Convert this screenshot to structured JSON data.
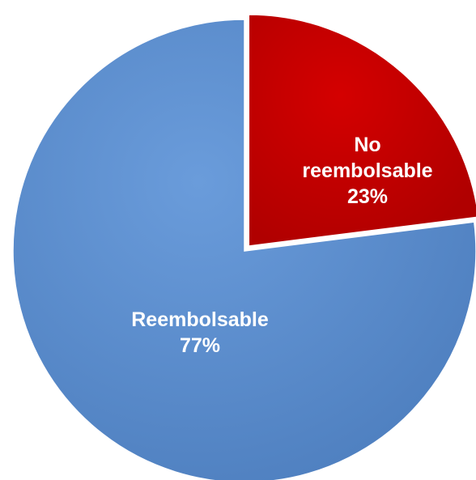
{
  "chart_data": {
    "type": "pie",
    "title": "",
    "slices": [
      {
        "label": "No reembolsable",
        "label_lines": [
          "No",
          "reembolsable"
        ],
        "value": 23,
        "value_label": "23%",
        "color": "#c00000"
      },
      {
        "label": "Reembolsable",
        "label_lines": [
          "Reembolsable"
        ],
        "value": 77,
        "value_label": "77%",
        "color": "#5b8fcf"
      }
    ],
    "start_angle_deg": 0,
    "direction": "clockwise",
    "legend": "none"
  }
}
